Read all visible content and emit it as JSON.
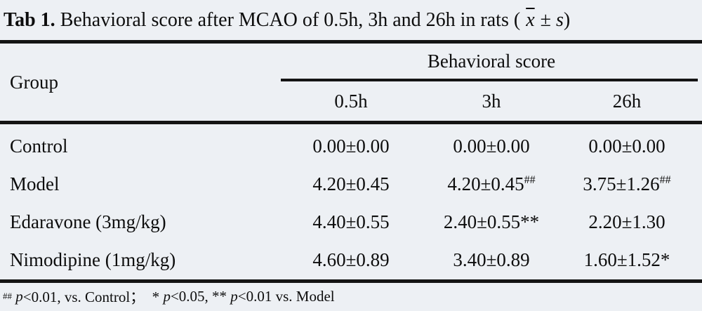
{
  "colors": {
    "background": "#edf0f4",
    "ink": "#0d0d0d",
    "rule": "#141414"
  },
  "caption": {
    "prefix": "Tab 1.",
    "body": " Behavioral score after MCAO of 0.5h, 3h and 26h in rats ( ",
    "xbar": "x",
    "pm": " ± ",
    "s": "s",
    "close": ")"
  },
  "table": {
    "group_header": "Group",
    "spanner": "Behavioral score",
    "columns": [
      "0.5h",
      "3h",
      "26h"
    ],
    "rows": [
      {
        "group": "Control",
        "values": [
          {
            "v": "0.00±0.00",
            "sup": ""
          },
          {
            "v": "0.00±0.00",
            "sup": ""
          },
          {
            "v": "0.00±0.00",
            "sup": ""
          }
        ]
      },
      {
        "group": "Model",
        "values": [
          {
            "v": "4.20±0.45",
            "sup": ""
          },
          {
            "v": "4.20±0.45",
            "sup": "##"
          },
          {
            "v": "3.75±1.26",
            "sup": "##"
          }
        ]
      },
      {
        "group": "Edaravone (3mg/kg)",
        "values": [
          {
            "v": "4.40±0.55",
            "sup": ""
          },
          {
            "v": "2.40±0.55**",
            "sup": ""
          },
          {
            "v": "2.20±1.30",
            "sup": ""
          }
        ]
      },
      {
        "group": "Nimodipine (1mg/kg)",
        "values": [
          {
            "v": "4.60±0.89",
            "sup": ""
          },
          {
            "v": "3.40±0.89",
            "sup": ""
          },
          {
            "v": "1.60±1.52*",
            "sup": ""
          }
        ]
      }
    ]
  },
  "footnote": {
    "sup": "##",
    "gap": " ",
    "p1": "p",
    "seg1": "<0.01, vs. Control；  * ",
    "p2": "p",
    "seg2": "<0.05, ** ",
    "p3": "p",
    "seg3": "<0.01 vs. Model"
  }
}
